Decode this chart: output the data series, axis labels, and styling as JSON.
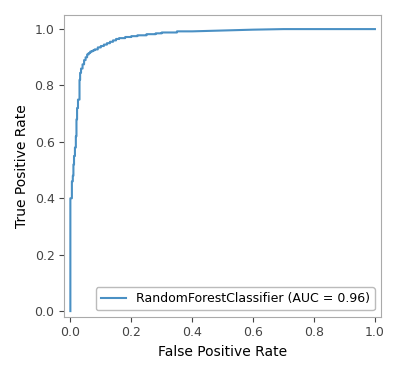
{
  "line_color": "#4a90c4",
  "line_width": 1.5,
  "xlabel": "False Positive Rate",
  "ylabel": "True Positive Rate",
  "legend_label": "RandomForestClassifier (AUC = 0.96)",
  "xlim": [
    -0.02,
    1.02
  ],
  "ylim": [
    -0.02,
    1.05
  ],
  "xticks": [
    0.0,
    0.2,
    0.4,
    0.6,
    0.8,
    1.0
  ],
  "yticks": [
    0.0,
    0.2,
    0.4,
    0.6,
    0.8,
    1.0
  ],
  "legend_loc": "lower right",
  "background_color": "#ffffff",
  "figsize": [
    4.0,
    3.74
  ],
  "dpi": 100,
  "fpr": [
    0.0,
    0.0,
    0.0,
    0.005,
    0.005,
    0.008,
    0.008,
    0.01,
    0.01,
    0.012,
    0.012,
    0.015,
    0.015,
    0.018,
    0.018,
    0.02,
    0.02,
    0.022,
    0.022,
    0.025,
    0.025,
    0.03,
    0.03,
    0.032,
    0.032,
    0.035,
    0.035,
    0.04,
    0.04,
    0.045,
    0.045,
    0.05,
    0.05,
    0.055,
    0.055,
    0.06,
    0.06,
    0.065,
    0.065,
    0.07,
    0.07,
    0.075,
    0.075,
    0.08,
    0.08,
    0.09,
    0.09,
    0.1,
    0.1,
    0.11,
    0.11,
    0.12,
    0.12,
    0.13,
    0.13,
    0.14,
    0.14,
    0.15,
    0.15,
    0.16,
    0.16,
    0.18,
    0.18,
    0.2,
    0.2,
    0.22,
    0.22,
    0.25,
    0.25,
    0.28,
    0.28,
    0.3,
    0.3,
    0.35,
    0.35,
    0.4,
    0.5,
    0.6,
    0.7,
    0.8,
    0.9,
    1.0
  ],
  "tpr": [
    0.0,
    0.38,
    0.4,
    0.4,
    0.46,
    0.46,
    0.48,
    0.48,
    0.52,
    0.52,
    0.55,
    0.55,
    0.58,
    0.58,
    0.62,
    0.62,
    0.68,
    0.68,
    0.72,
    0.72,
    0.75,
    0.75,
    0.82,
    0.82,
    0.845,
    0.845,
    0.86,
    0.86,
    0.875,
    0.875,
    0.89,
    0.89,
    0.9,
    0.9,
    0.91,
    0.91,
    0.915,
    0.915,
    0.92,
    0.92,
    0.922,
    0.922,
    0.925,
    0.925,
    0.928,
    0.928,
    0.935,
    0.935,
    0.94,
    0.94,
    0.945,
    0.945,
    0.95,
    0.95,
    0.955,
    0.955,
    0.96,
    0.96,
    0.965,
    0.965,
    0.968,
    0.968,
    0.972,
    0.972,
    0.975,
    0.975,
    0.978,
    0.978,
    0.982,
    0.982,
    0.985,
    0.985,
    0.988,
    0.988,
    0.992,
    0.992,
    0.995,
    0.998,
    1.0,
    1.0,
    1.0,
    1.0
  ]
}
